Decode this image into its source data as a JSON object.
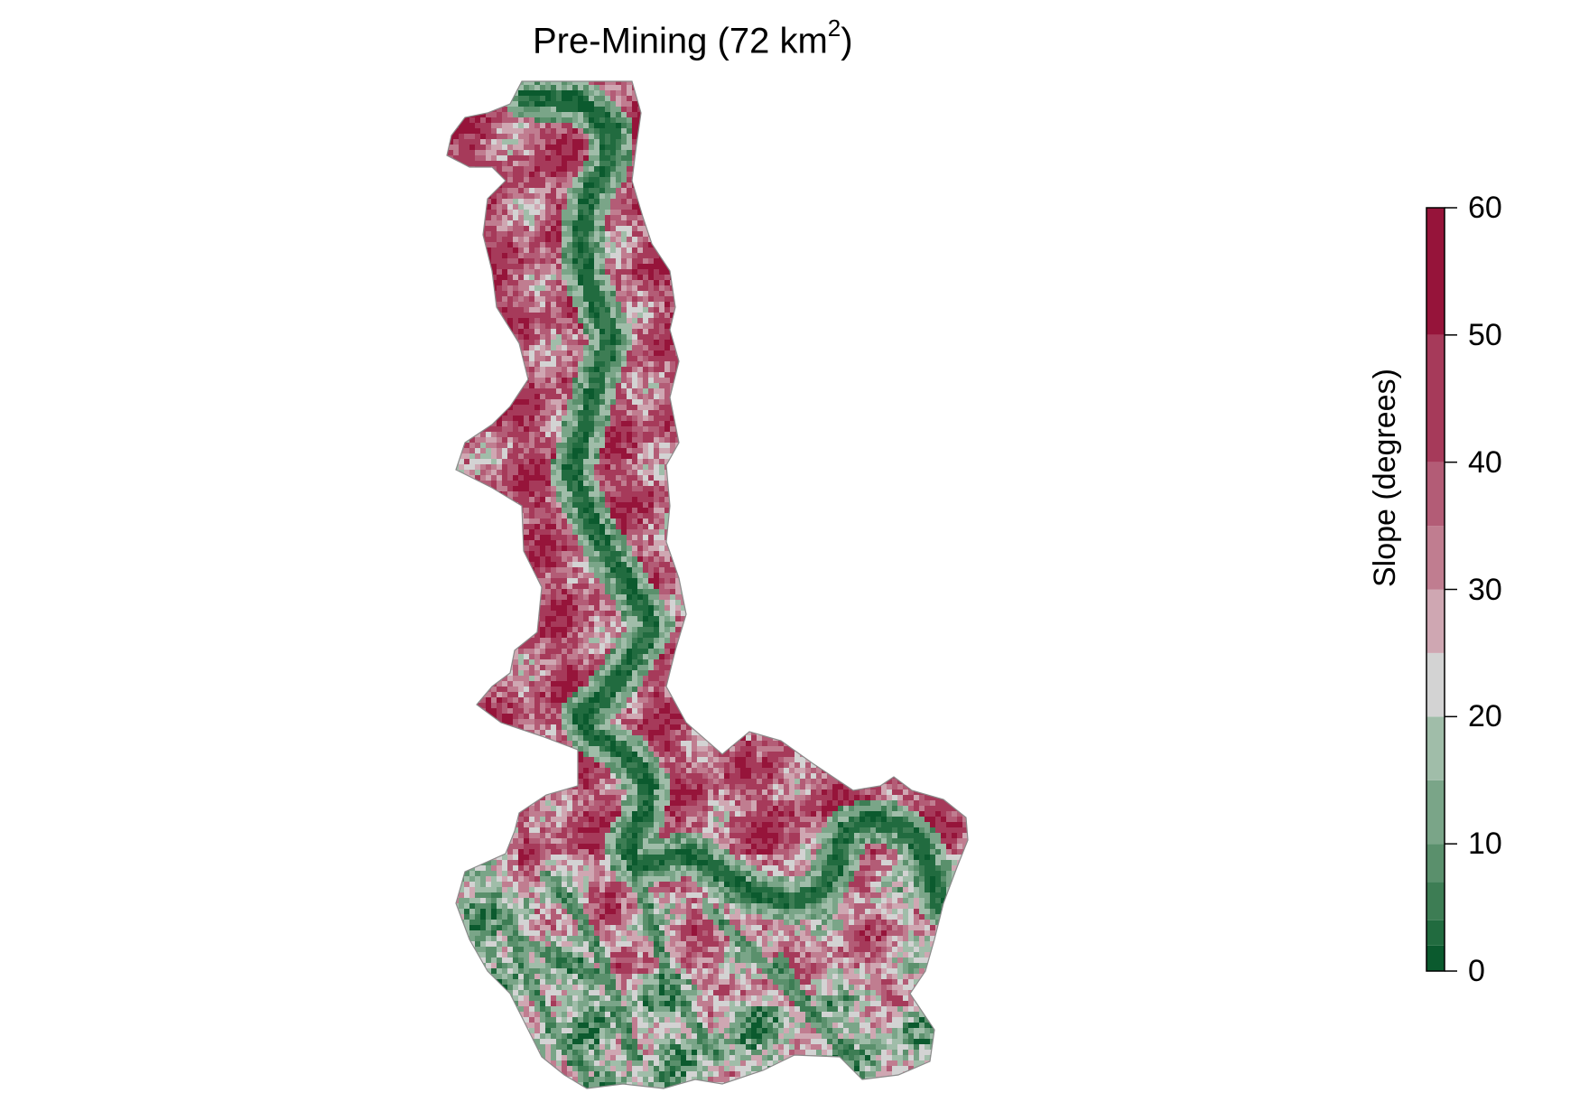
{
  "title": {
    "text": "Pre-Mining (72 km",
    "superscript": "2",
    "suffix": ")"
  },
  "legend": {
    "title": "Slope (degrees)",
    "min": 0,
    "max": 60,
    "ticks": [
      "0",
      "10",
      "20",
      "30",
      "40",
      "50",
      "60"
    ],
    "tick_values": [
      0,
      10,
      20,
      30,
      40,
      50,
      60
    ],
    "bins": [
      {
        "from": 0,
        "to": 2,
        "color": "#0b5a2e"
      },
      {
        "from": 2,
        "to": 4,
        "color": "#216b3f"
      },
      {
        "from": 4,
        "to": 7,
        "color": "#3d7d54"
      },
      {
        "from": 7,
        "to": 10,
        "color": "#5a906c"
      },
      {
        "from": 10,
        "to": 15,
        "color": "#7aa588"
      },
      {
        "from": 15,
        "to": 20,
        "color": "#a0bda9"
      },
      {
        "from": 20,
        "to": 25,
        "color": "#d3d3d3"
      },
      {
        "from": 25,
        "to": 30,
        "color": "#cfa7b2"
      },
      {
        "from": 30,
        "to": 35,
        "color": "#c07d90"
      },
      {
        "from": 35,
        "to": 40,
        "color": "#b35c76"
      },
      {
        "from": 40,
        "to": 50,
        "color": "#a63a5a"
      },
      {
        "from": 50,
        "to": 60,
        "color": "#96143a"
      }
    ]
  },
  "colors": {
    "low_slope": "#0b5a2e",
    "mid_slope": "#d3d3d3",
    "high_slope": "#96143a"
  },
  "icons": [
    "slope-raster-map",
    "colorbar"
  ]
}
